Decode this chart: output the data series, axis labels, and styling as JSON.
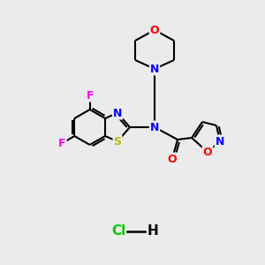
{
  "background_color": "#ebebeb",
  "bond_color": "#000000",
  "atom_colors": {
    "N": "#0000ff",
    "O": "#ff0000",
    "S": "#b8b800",
    "F": "#ff00ff",
    "C": "#000000",
    "Cl": "#00cc00",
    "H": "#000000"
  },
  "figsize": [
    3.0,
    3.0
  ],
  "dpi": 100
}
